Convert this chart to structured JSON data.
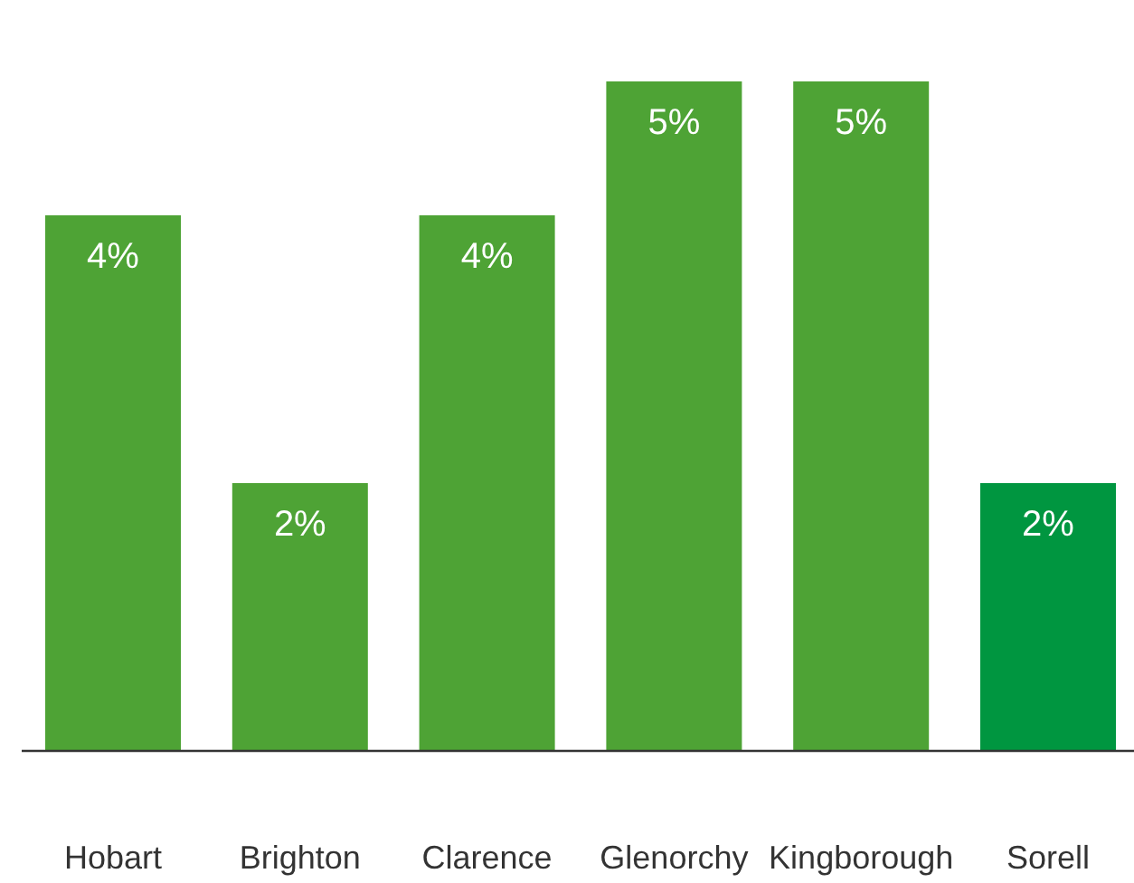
{
  "chart_data": {
    "type": "bar",
    "categories": [
      "Hobart",
      "Brighton",
      "Clarence",
      "Glenorchy",
      "Kingborough",
      "Sorell"
    ],
    "values": [
      4,
      2,
      4,
      5,
      5,
      2
    ],
    "value_labels": [
      "4%",
      "2%",
      "4%",
      "5%",
      "5%",
      "2%"
    ],
    "colors": [
      "#4ea335",
      "#4ea335",
      "#4ea335",
      "#4ea335",
      "#4ea335",
      "#009640"
    ]
  }
}
